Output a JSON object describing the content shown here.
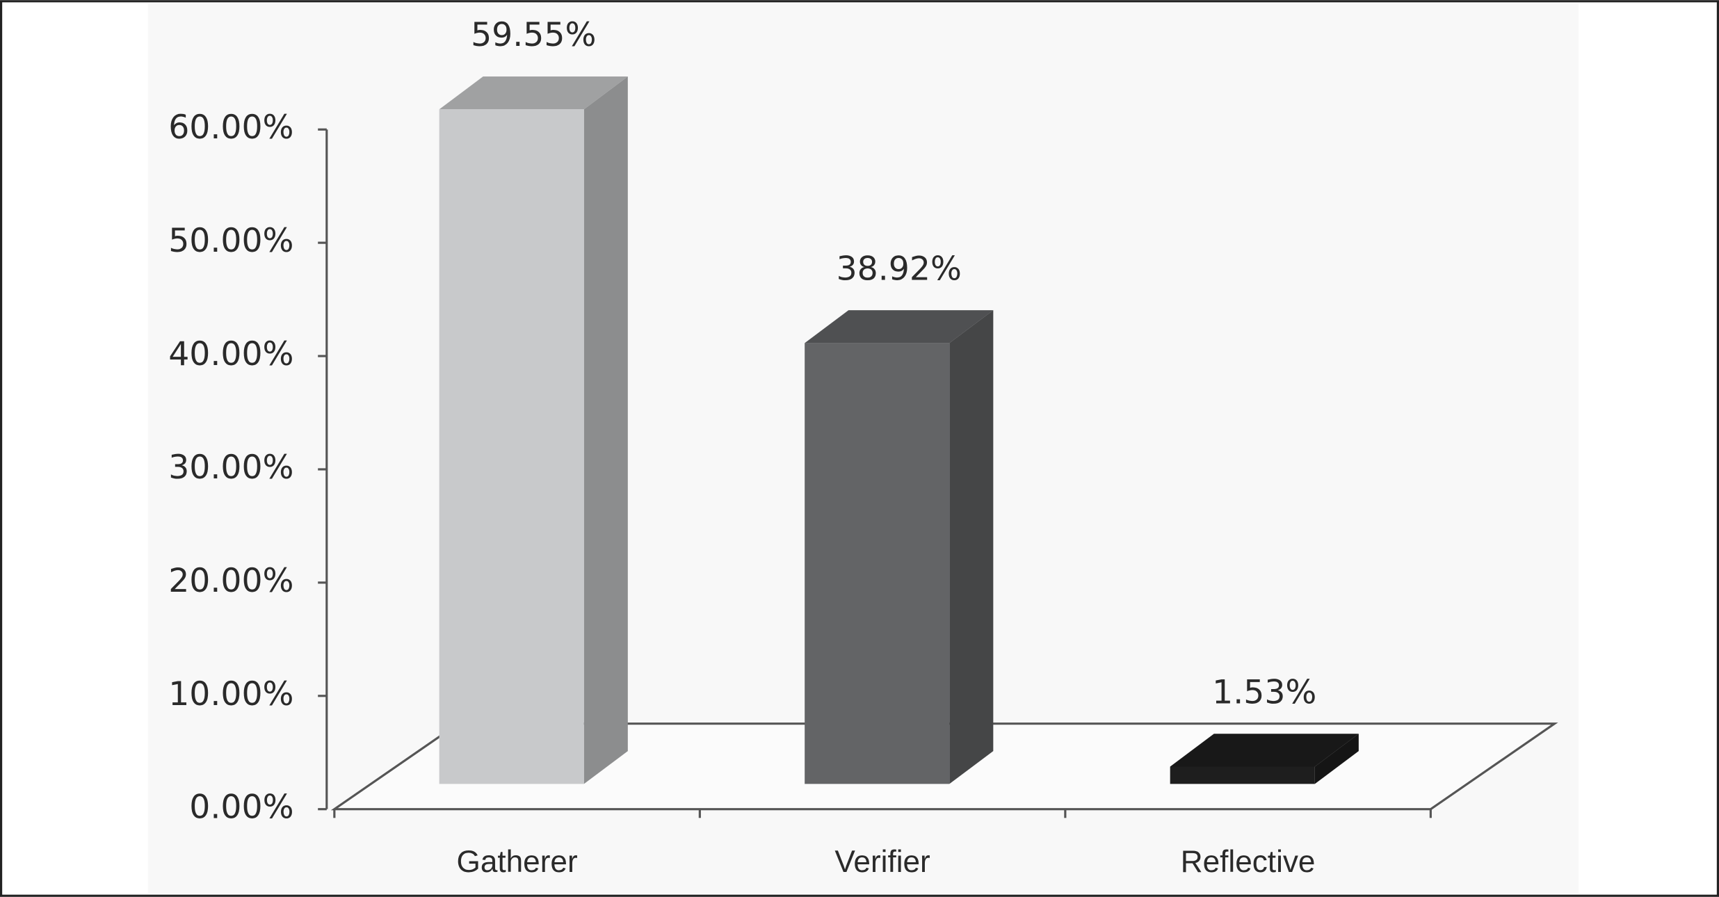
{
  "chart_data": {
    "type": "bar3d",
    "categories": [
      "Gatherer",
      "Verifier",
      "Reflective"
    ],
    "values": [
      59.55,
      38.92,
      1.53
    ],
    "value_labels": [
      "59.55%",
      "38.92%",
      "1.53%"
    ],
    "colors": [
      "#c8c9cb",
      "#636466",
      "#1e1e1e"
    ],
    "ylim": [
      0,
      60
    ],
    "yticks": [
      {
        "value": 0,
        "label": "0.00%"
      },
      {
        "value": 10,
        "label": "10.00%"
      },
      {
        "value": 20,
        "label": "20.00%"
      },
      {
        "value": 30,
        "label": "30.00%"
      },
      {
        "value": 40,
        "label": "40.00%"
      },
      {
        "value": 50,
        "label": "50.00%"
      },
      {
        "value": 60,
        "label": "60.00%"
      }
    ]
  }
}
